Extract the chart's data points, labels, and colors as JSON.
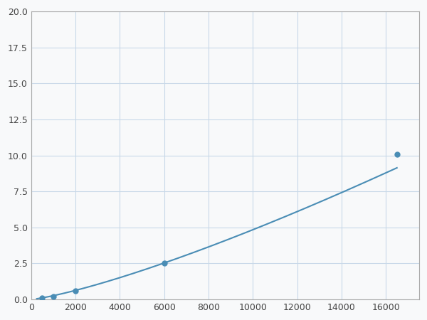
{
  "x": [
    250,
    500,
    1000,
    2000,
    6000,
    16500
  ],
  "y": [
    0.05,
    0.12,
    0.2,
    0.6,
    2.5,
    10.1
  ],
  "marker_x": [
    500,
    1000,
    2000,
    6000,
    16500
  ],
  "marker_y": [
    0.12,
    0.2,
    0.6,
    2.5,
    10.1
  ],
  "line_color": "#4a8db5",
  "marker_color": "#4a8db5",
  "marker_size": 5,
  "line_width": 1.5,
  "xlim": [
    0,
    17500
  ],
  "ylim": [
    0,
    20
  ],
  "xticks": [
    0,
    2000,
    4000,
    6000,
    8000,
    10000,
    12000,
    14000,
    16000
  ],
  "yticks": [
    0.0,
    2.5,
    5.0,
    7.5,
    10.0,
    12.5,
    15.0,
    17.5,
    20.0
  ],
  "grid_color": "#c8d8e8",
  "background_color": "#f8f9fa",
  "spine_color": "#aaaaaa"
}
